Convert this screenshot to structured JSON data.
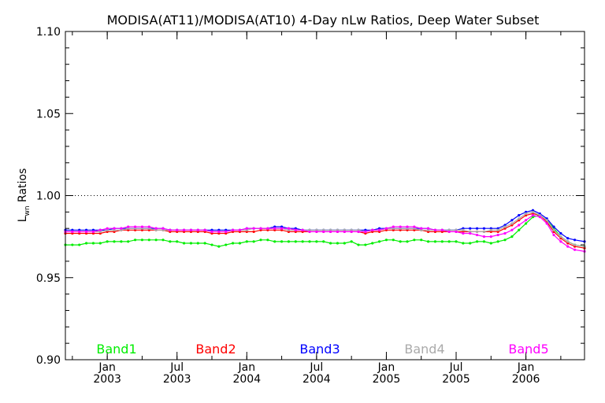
{
  "chart_data": {
    "type": "line",
    "title": "MODISA(AT11)/MODISA(AT10) 4-Day nLw Ratios, Deep Water Subset",
    "ylabel": "L_wn Ratios",
    "xlabel": "",
    "ylim": [
      0.9,
      1.1
    ],
    "yticks": [
      "1.10",
      "1.05",
      "1.00",
      "0.95",
      "0.90"
    ],
    "xlim": [
      2002.7,
      2006.42
    ],
    "xticks": [
      {
        "line1": "Jan",
        "line2": "2003",
        "x": 2003.0
      },
      {
        "line1": "Jul",
        "line2": "2003",
        "x": 2003.5
      },
      {
        "line1": "Jan",
        "line2": "2004",
        "x": 2004.0
      },
      {
        "line1": "Jul",
        "line2": "2004",
        "x": 2004.5
      },
      {
        "line1": "Jan",
        "line2": "2005",
        "x": 2005.0
      },
      {
        "line1": "Jul",
        "line2": "2005",
        "x": 2005.5
      },
      {
        "line1": "Jan",
        "line2": "2006",
        "x": 2006.0
      }
    ],
    "reference_line": {
      "y": 1.0,
      "style": "dotted"
    },
    "grid": false,
    "legend_placement": "bottom inside plot",
    "x": [
      2002.7,
      2002.75,
      2002.8,
      2002.85,
      2002.9,
      2002.95,
      2003.0,
      2003.05,
      2003.1,
      2003.15,
      2003.2,
      2003.25,
      2003.3,
      2003.35,
      2003.4,
      2003.45,
      2003.5,
      2003.55,
      2003.6,
      2003.65,
      2003.7,
      2003.75,
      2003.8,
      2003.85,
      2003.9,
      2003.95,
      2004.0,
      2004.05,
      2004.1,
      2004.15,
      2004.2,
      2004.25,
      2004.3,
      2004.35,
      2004.4,
      2004.45,
      2004.5,
      2004.55,
      2004.6,
      2004.65,
      2004.7,
      2004.75,
      2004.8,
      2004.85,
      2004.9,
      2004.95,
      2005.0,
      2005.05,
      2005.1,
      2005.15,
      2005.2,
      2005.25,
      2005.3,
      2005.35,
      2005.4,
      2005.45,
      2005.5,
      2005.55,
      2005.6,
      2005.65,
      2005.7,
      2005.75,
      2005.8,
      2005.85,
      2005.9,
      2005.95,
      2006.0,
      2006.05,
      2006.1,
      2006.15,
      2006.2,
      2006.25,
      2006.3,
      2006.35,
      2006.42
    ],
    "series": [
      {
        "name": "Band1",
        "color": "#00ee00",
        "values": [
          0.97,
          0.97,
          0.97,
          0.971,
          0.971,
          0.971,
          0.972,
          0.972,
          0.972,
          0.972,
          0.973,
          0.973,
          0.973,
          0.973,
          0.973,
          0.972,
          0.972,
          0.971,
          0.971,
          0.971,
          0.971,
          0.97,
          0.969,
          0.97,
          0.971,
          0.971,
          0.972,
          0.972,
          0.973,
          0.973,
          0.972,
          0.972,
          0.972,
          0.972,
          0.972,
          0.972,
          0.972,
          0.972,
          0.971,
          0.971,
          0.971,
          0.972,
          0.97,
          0.97,
          0.971,
          0.972,
          0.973,
          0.973,
          0.972,
          0.972,
          0.973,
          0.973,
          0.972,
          0.972,
          0.972,
          0.972,
          0.972,
          0.971,
          0.971,
          0.972,
          0.972,
          0.971,
          0.972,
          0.973,
          0.975,
          0.979,
          0.983,
          0.987,
          0.988,
          0.985,
          0.98,
          0.975,
          0.972,
          0.97,
          0.969
        ]
      },
      {
        "name": "Band2",
        "color": "#ff0000",
        "values": [
          0.977,
          0.977,
          0.977,
          0.977,
          0.977,
          0.977,
          0.978,
          0.978,
          0.979,
          0.979,
          0.979,
          0.979,
          0.979,
          0.979,
          0.979,
          0.978,
          0.978,
          0.978,
          0.978,
          0.978,
          0.978,
          0.977,
          0.977,
          0.977,
          0.978,
          0.978,
          0.978,
          0.978,
          0.979,
          0.979,
          0.979,
          0.979,
          0.978,
          0.978,
          0.978,
          0.978,
          0.978,
          0.978,
          0.978,
          0.978,
          0.978,
          0.978,
          0.978,
          0.977,
          0.978,
          0.978,
          0.979,
          0.979,
          0.979,
          0.979,
          0.979,
          0.979,
          0.978,
          0.978,
          0.978,
          0.978,
          0.978,
          0.978,
          0.978,
          0.978,
          0.978,
          0.978,
          0.978,
          0.98,
          0.982,
          0.985,
          0.988,
          0.989,
          0.988,
          0.984,
          0.978,
          0.974,
          0.971,
          0.969,
          0.968
        ]
      },
      {
        "name": "Band3",
        "color": "#0000ff",
        "values": [
          0.979,
          0.979,
          0.979,
          0.979,
          0.979,
          0.979,
          0.979,
          0.98,
          0.98,
          0.98,
          0.98,
          0.98,
          0.98,
          0.98,
          0.98,
          0.979,
          0.979,
          0.979,
          0.979,
          0.979,
          0.979,
          0.979,
          0.979,
          0.979,
          0.979,
          0.979,
          0.98,
          0.98,
          0.98,
          0.98,
          0.981,
          0.981,
          0.98,
          0.98,
          0.979,
          0.979,
          0.979,
          0.979,
          0.979,
          0.979,
          0.979,
          0.979,
          0.979,
          0.979,
          0.979,
          0.98,
          0.98,
          0.98,
          0.98,
          0.98,
          0.98,
          0.98,
          0.98,
          0.979,
          0.979,
          0.979,
          0.979,
          0.98,
          0.98,
          0.98,
          0.98,
          0.98,
          0.98,
          0.982,
          0.985,
          0.988,
          0.99,
          0.991,
          0.989,
          0.986,
          0.981,
          0.977,
          0.974,
          0.973,
          0.972
        ]
      },
      {
        "name": "Band4",
        "color": "#aaaaaa",
        "values": [
          0.978,
          0.978,
          0.978,
          0.978,
          0.978,
          0.978,
          0.979,
          0.979,
          0.979,
          0.98,
          0.98,
          0.98,
          0.98,
          0.979,
          0.979,
          0.979,
          0.979,
          0.979,
          0.979,
          0.979,
          0.979,
          0.978,
          0.978,
          0.978,
          0.979,
          0.979,
          0.979,
          0.98,
          0.98,
          0.98,
          0.98,
          0.98,
          0.979,
          0.979,
          0.979,
          0.979,
          0.979,
          0.979,
          0.979,
          0.979,
          0.979,
          0.979,
          0.979,
          0.978,
          0.979,
          0.979,
          0.98,
          0.98,
          0.98,
          0.98,
          0.98,
          0.979,
          0.979,
          0.979,
          0.979,
          0.979,
          0.979,
          0.979,
          0.978,
          0.978,
          0.978,
          0.979,
          0.979,
          0.981,
          0.983,
          0.986,
          0.989,
          0.99,
          0.988,
          0.985,
          0.979,
          0.975,
          0.972,
          0.97,
          0.969
        ]
      },
      {
        "name": "Band5",
        "color": "#ff00ff",
        "values": [
          0.978,
          0.978,
          0.978,
          0.978,
          0.978,
          0.979,
          0.98,
          0.98,
          0.98,
          0.981,
          0.981,
          0.981,
          0.981,
          0.98,
          0.98,
          0.979,
          0.979,
          0.979,
          0.979,
          0.979,
          0.979,
          0.978,
          0.978,
          0.978,
          0.979,
          0.979,
          0.98,
          0.98,
          0.98,
          0.98,
          0.98,
          0.98,
          0.98,
          0.979,
          0.979,
          0.978,
          0.978,
          0.978,
          0.978,
          0.978,
          0.978,
          0.978,
          0.978,
          0.978,
          0.979,
          0.979,
          0.98,
          0.981,
          0.981,
          0.981,
          0.981,
          0.98,
          0.98,
          0.979,
          0.979,
          0.978,
          0.978,
          0.977,
          0.977,
          0.976,
          0.975,
          0.975,
          0.976,
          0.977,
          0.979,
          0.982,
          0.985,
          0.988,
          0.987,
          0.983,
          0.976,
          0.972,
          0.969,
          0.967,
          0.966
        ]
      }
    ]
  }
}
